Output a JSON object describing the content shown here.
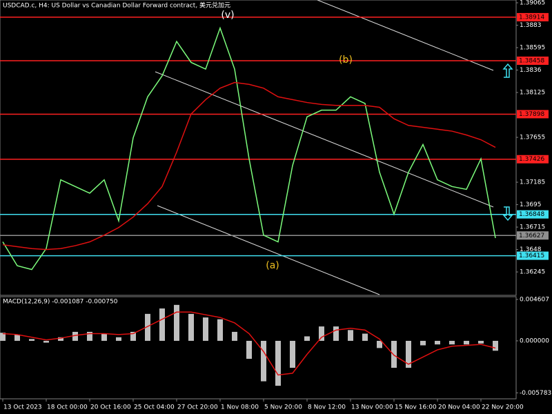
{
  "chart_data": [
    {
      "type": "line",
      "title": "USDCAD.c, H4:  US Dollar vs Canadian Dollar Forward contract, 美元兑加元",
      "categories": [
        "13 Oct 2023",
        null,
        null,
        "18 Oct 00:00",
        null,
        null,
        "20 Oct 16:00",
        null,
        null,
        "25 Oct 04:00",
        null,
        null,
        "27 Oct 20:00",
        null,
        null,
        "1 Nov 08:00",
        null,
        null,
        "5 Nov 20:00",
        null,
        null,
        "8 Nov 12:00",
        null,
        null,
        "13 Nov 00:00",
        null,
        null,
        "15 Nov 16:00",
        null,
        null,
        "20 Nov 04:00",
        null,
        null,
        "22 Nov 20:00",
        null
      ],
      "series": [
        {
          "color": "#7cfc7c",
          "values": [
            1.3656,
            1.3631,
            1.3627,
            1.3649,
            1.3721,
            1.3714,
            1.3707,
            1.3721,
            1.3678,
            1.3765,
            1.3808,
            1.383,
            1.3866,
            1.3844,
            1.3837,
            1.388,
            1.3837,
            1.3743,
            1.3663,
            1.3656,
            1.3736,
            1.3787,
            1.3794,
            1.3794,
            1.3808,
            1.3801,
            1.3729,
            1.3685,
            1.3729,
            1.3758,
            1.3721,
            1.3714,
            1.3711,
            1.3743,
            1.366
          ]
        },
        {
          "color": "#e01010",
          "values": [
            1.3653,
            1.3651,
            1.3649,
            1.3648,
            1.3649,
            1.3652,
            1.3656,
            1.3663,
            1.3671,
            1.3682,
            1.3696,
            1.3714,
            1.375,
            1.379,
            1.3805,
            1.3817,
            1.3823,
            1.3821,
            1.3817,
            1.3808,
            1.3805,
            1.3802,
            1.38,
            1.3799,
            1.3799,
            1.3799,
            1.3797,
            1.3785,
            1.3778,
            1.3776,
            1.3774,
            1.3772,
            1.3768,
            1.3763,
            1.3755
          ]
        }
      ],
      "ylim": [
        1.36,
        1.39094
      ],
      "yticks": [
        1.39065,
        1.3883,
        1.38595,
        1.3836,
        1.38125,
        1.37655,
        1.37185,
        1.3695,
        1.36715,
        1.3648,
        1.36245
      ],
      "levels": [
        {
          "value": 1.38914,
          "color": "#ff2020"
        },
        {
          "value": 1.38458,
          "color": "#ff2020"
        },
        {
          "value": 1.37898,
          "color": "#ff2020"
        },
        {
          "value": 1.37426,
          "color": "#ff2020"
        },
        {
          "value": 1.36848,
          "color": "#40e0f0"
        },
        {
          "value": 1.36415,
          "color": "#40e0f0"
        },
        {
          "value": 1.36627,
          "color": "#909090"
        }
      ],
      "annotations": [
        "(v)",
        "(b)",
        "(a)"
      ]
    },
    {
      "type": "bar",
      "title": "MACD(12,26,9) -0.001087 -0.000750",
      "series": [
        {
          "color": "#c0c0c0",
          "values": [
            0.0009,
            0.0007,
            0.0002,
            -0.0002,
            0.0004,
            0.001,
            0.001,
            0.0008,
            0.0004,
            0.001,
            0.003,
            0.0036,
            0.004,
            0.003,
            0.0026,
            0.0024,
            0.001,
            -0.002,
            -0.0045,
            -0.005,
            -0.003,
            0.0005,
            0.0016,
            0.0016,
            0.0012,
            0.0008,
            -0.0008,
            -0.003,
            -0.003,
            -0.0005,
            -0.0004,
            -0.0004,
            -0.0004,
            -0.0003,
            -0.0011
          ]
        },
        {
          "color": "#e01010",
          "values": [
            0.0008,
            0.0007,
            0.0004,
            0.0001,
            0.0003,
            0.0006,
            0.0008,
            0.0008,
            0.0007,
            0.0008,
            0.0016,
            0.0024,
            0.0032,
            0.0032,
            0.0029,
            0.0026,
            0.002,
            0.0008,
            -0.0012,
            -0.0038,
            -0.0036,
            -0.0015,
            0.0004,
            0.0012,
            0.0014,
            0.0012,
            0.0002,
            -0.0016,
            -0.0026,
            -0.0018,
            -0.001,
            -0.0006,
            -0.0005,
            -0.0004,
            -0.0008
          ]
        }
      ],
      "ylim": [
        -0.00645,
        0.00491
      ],
      "yticks": [
        0.004607,
        {
          "value": 0,
          "label": "0.000000"
        },
        -0.005783
      ]
    }
  ]
}
